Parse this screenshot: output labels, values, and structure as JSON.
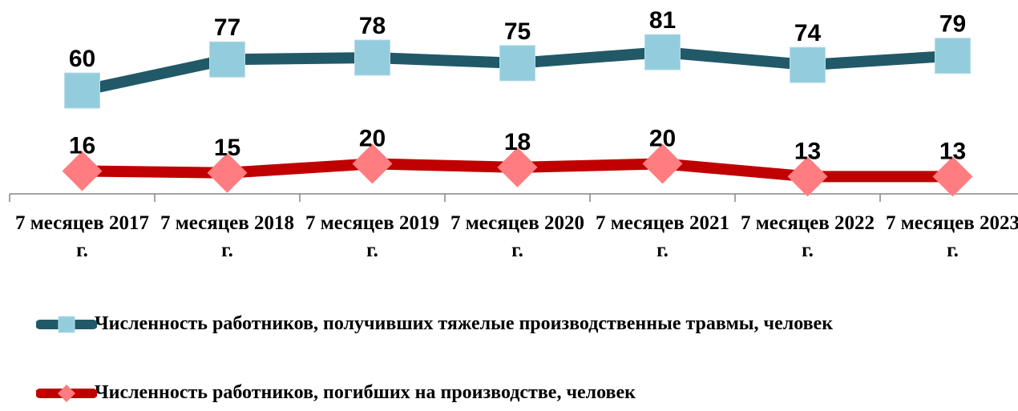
{
  "chart_data": {
    "type": "line",
    "categories": [
      "7 месяцев 2017 г.",
      "7 месяцев 2018 г.",
      "7 месяцев 2019 г.",
      "7 месяцев 2020 г.",
      "7 месяцев 2021 г.",
      "7 месяцев 2022 г.",
      "7 месяцев 2023 г."
    ],
    "series": [
      {
        "name": "Численность работников, получивших тяжелые производственные травмы, человек",
        "color": "#215968",
        "marker_color": "#93cddd",
        "marker": "square",
        "values": [
          60,
          77,
          78,
          75,
          81,
          74,
          79
        ]
      },
      {
        "name": "Численность работников, погибших на производстве, человек",
        "color": "#c00000",
        "marker_color": "#ff7c80",
        "marker": "diamond",
        "values": [
          16,
          15,
          20,
          18,
          20,
          13,
          13
        ]
      }
    ],
    "ylim": [
      0,
      92
    ]
  }
}
